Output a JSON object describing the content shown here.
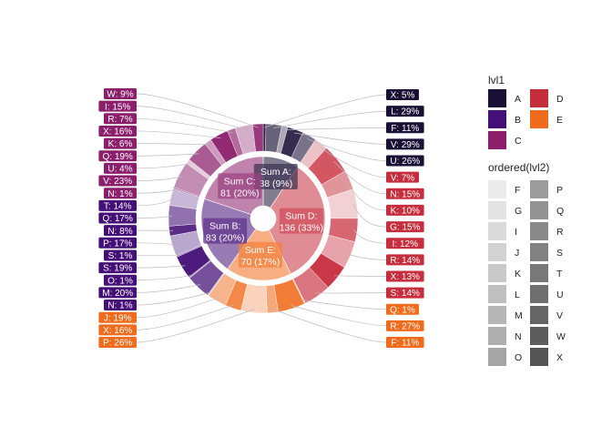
{
  "chart_data": {
    "type": "pie",
    "inner": [
      {
        "label": "Sum A:",
        "value": 38,
        "pct": "9%",
        "group": "A"
      },
      {
        "label": "Sum D:",
        "value": 136,
        "pct": "33%",
        "group": "D"
      },
      {
        "label": "Sum E:",
        "value": 70,
        "pct": "17%",
        "group": "E"
      },
      {
        "label": "Sum B:",
        "value": 83,
        "pct": "20%",
        "group": "B"
      },
      {
        "label": "Sum C:",
        "value": 81,
        "pct": "20%",
        "group": "C"
      }
    ],
    "outer": [
      {
        "group": "A",
        "label": "X",
        "pct": "5%"
      },
      {
        "group": "A",
        "label": "L",
        "pct": "29%"
      },
      {
        "group": "A",
        "label": "F",
        "pct": "11%"
      },
      {
        "group": "A",
        "label": "V",
        "pct": "29%"
      },
      {
        "group": "A",
        "label": "U",
        "pct": "26%"
      },
      {
        "group": "D",
        "label": "V",
        "pct": "7%"
      },
      {
        "group": "D",
        "label": "N",
        "pct": "15%"
      },
      {
        "group": "D",
        "label": "K",
        "pct": "10%"
      },
      {
        "group": "D",
        "label": "G",
        "pct": "15%"
      },
      {
        "group": "D",
        "label": "I",
        "pct": "12%"
      },
      {
        "group": "D",
        "label": "R",
        "pct": "14%"
      },
      {
        "group": "D",
        "label": "X",
        "pct": "13%"
      },
      {
        "group": "D",
        "label": "S",
        "pct": "14%"
      },
      {
        "group": "E",
        "label": "Q",
        "pct": "1%"
      },
      {
        "group": "E",
        "label": "R",
        "pct": "27%"
      },
      {
        "group": "E",
        "label": "F",
        "pct": "11%"
      },
      {
        "group": "E",
        "label": "P",
        "pct": "26%"
      },
      {
        "group": "E",
        "label": "X",
        "pct": "16%"
      },
      {
        "group": "E",
        "label": "J",
        "pct": "19%"
      },
      {
        "group": "B",
        "label": "N",
        "pct": "1%"
      },
      {
        "group": "B",
        "label": "M",
        "pct": "20%"
      },
      {
        "group": "B",
        "label": "O",
        "pct": "1%"
      },
      {
        "group": "B",
        "label": "S",
        "pct": "19%"
      },
      {
        "group": "B",
        "label": "S",
        "pct": "1%"
      },
      {
        "group": "B",
        "label": "P",
        "pct": "17%"
      },
      {
        "group": "B",
        "label": "N",
        "pct": "8%"
      },
      {
        "group": "B",
        "label": "Q",
        "pct": "17%"
      },
      {
        "group": "B",
        "label": "T",
        "pct": "14%"
      },
      {
        "group": "C",
        "label": "N",
        "pct": "1%"
      },
      {
        "group": "C",
        "label": "V",
        "pct": "23%"
      },
      {
        "group": "C",
        "label": "U",
        "pct": "4%"
      },
      {
        "group": "C",
        "label": "Q",
        "pct": "19%"
      },
      {
        "group": "C",
        "label": "K",
        "pct": "6%"
      },
      {
        "group": "C",
        "label": "X",
        "pct": "16%"
      },
      {
        "group": "C",
        "label": "R",
        "pct": "7%"
      },
      {
        "group": "C",
        "label": "I",
        "pct": "15%"
      },
      {
        "group": "C",
        "label": "W",
        "pct": "9%"
      }
    ],
    "group_colors": {
      "A": "#1a1035",
      "B": "#440f76",
      "C": "#8b1f6c",
      "D": "#c72e3d",
      "E": "#f06b1b"
    },
    "legend1": {
      "title": "lvl1",
      "items": [
        {
          "key": "A",
          "color": "#1a1035"
        },
        {
          "key": "B",
          "color": "#440f76"
        },
        {
          "key": "C",
          "color": "#8b1f6c"
        },
        {
          "key": "D",
          "color": "#c72e3d"
        },
        {
          "key": "E",
          "color": "#f06b1b"
        }
      ]
    },
    "legend2": {
      "title": "ordered(lvl2)",
      "items": [
        {
          "key": "F",
          "color": "#ebebeb"
        },
        {
          "key": "G",
          "color": "#e3e3e3"
        },
        {
          "key": "I",
          "color": "#dadada"
        },
        {
          "key": "J",
          "color": "#d2d2d2"
        },
        {
          "key": "K",
          "color": "#c9c9c9"
        },
        {
          "key": "L",
          "color": "#c0c0c0"
        },
        {
          "key": "M",
          "color": "#b7b7b7"
        },
        {
          "key": "N",
          "color": "#aeaeae"
        },
        {
          "key": "O",
          "color": "#a5a5a5"
        },
        {
          "key": "P",
          "color": "#9c9c9c"
        },
        {
          "key": "Q",
          "color": "#939393"
        },
        {
          "key": "R",
          "color": "#8a8a8a"
        },
        {
          "key": "S",
          "color": "#818181"
        },
        {
          "key": "T",
          "color": "#787878"
        },
        {
          "key": "U",
          "color": "#6f6f6f"
        },
        {
          "key": "V",
          "color": "#666666"
        },
        {
          "key": "W",
          "color": "#5d5d5d"
        },
        {
          "key": "X",
          "color": "#545454"
        }
      ]
    }
  }
}
